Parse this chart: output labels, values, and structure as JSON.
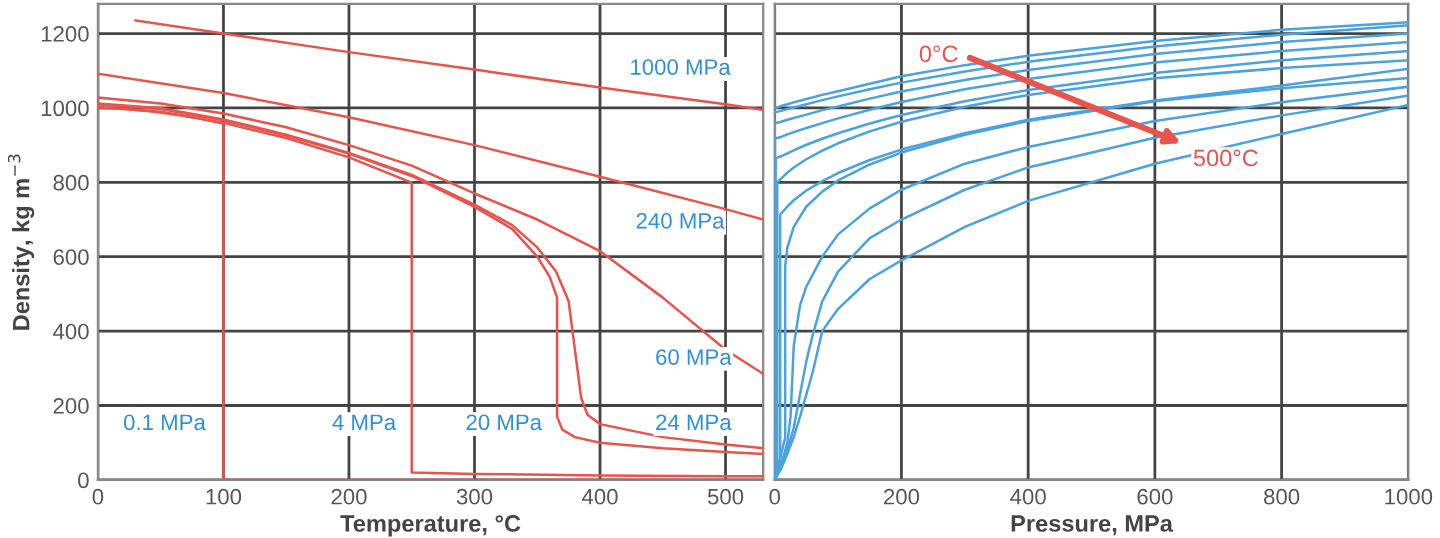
{
  "chart_data": [
    {
      "type": "line",
      "xlabel": "Temperature, °C",
      "ylabel": "Density, kg m$^{−3}$",
      "xlim": [
        0,
        530
      ],
      "ylim": [
        0,
        1280
      ],
      "xticks": [
        0,
        100,
        200,
        300,
        400,
        500
      ],
      "yticks": [
        0,
        200,
        400,
        600,
        800,
        1000,
        1200
      ],
      "grid": true,
      "series": [
        {
          "name": "0.1 MPa",
          "color": "#e8534b",
          "x": [
            0,
            20,
            40,
            60,
            80,
            100,
            100,
            200,
            300,
            400,
            530
          ],
          "values": [
            1000,
            998,
            992,
            983,
            972,
            958,
            0,
            0,
            0,
            0,
            0
          ]
        },
        {
          "name": "4 MPa",
          "color": "#e8534b",
          "x": [
            0,
            50,
            100,
            150,
            200,
            250,
            250,
            300,
            400,
            500,
            530
          ],
          "values": [
            1002,
            990,
            960,
            919,
            867,
            799,
            20,
            16,
            12,
            10,
            10
          ]
        },
        {
          "name": "20 MPa",
          "color": "#e8534b",
          "x": [
            0,
            50,
            100,
            150,
            200,
            250,
            300,
            330,
            350,
            360,
            365.8,
            365.8,
            370,
            380,
            400,
            450,
            500,
            530
          ],
          "values": [
            1010,
            997,
            967,
            926,
            877,
            817,
            734,
            675,
            600,
            545,
            490,
            170,
            135,
            115,
            100,
            85,
            75,
            70
          ]
        },
        {
          "name": "24 MPa",
          "color": "#e8534b",
          "x": [
            0,
            50,
            100,
            150,
            200,
            250,
            300,
            330,
            350,
            365,
            375,
            380,
            385,
            390,
            400,
            450,
            500,
            530
          ],
          "values": [
            1012,
            999,
            969,
            928,
            879,
            820,
            740,
            685,
            625,
            560,
            480,
            350,
            220,
            175,
            150,
            115,
            95,
            85
          ]
        },
        {
          "name": "60 MPa",
          "color": "#e8534b",
          "x": [
            0,
            50,
            100,
            150,
            200,
            250,
            300,
            350,
            400,
            450,
            500,
            530
          ],
          "values": [
            1028,
            1012,
            985,
            948,
            900,
            845,
            770,
            700,
            615,
            490,
            350,
            285
          ]
        },
        {
          "name": "240 MPa",
          "color": "#e8534b",
          "x": [
            0,
            100,
            200,
            300,
            400,
            500,
            530
          ],
          "values": [
            1092,
            1040,
            975,
            900,
            815,
            728,
            700
          ]
        },
        {
          "name": "1000 MPa",
          "color": "#e8534b",
          "x": [
            30,
            100,
            200,
            300,
            400,
            500,
            530
          ],
          "values": [
            1235,
            1200,
            1150,
            1103,
            1055,
            1010,
            995
          ]
        }
      ]
    },
    {
      "type": "line",
      "xlabel": "Pressure, MPa",
      "xlim": [
        0,
        1000
      ],
      "ylim": [
        0,
        1280
      ],
      "xticks": [
        0,
        200,
        400,
        600,
        800,
        1000
      ],
      "yticks": [
        0,
        200,
        400,
        600,
        800,
        1000,
        1200
      ],
      "grid": true,
      "tick_labels": "x",
      "annotations": [
        {
          "text": "0°C",
          "x": 300,
          "y": 1140
        },
        {
          "text": "500°C",
          "x": 650,
          "y": 900
        }
      ],
      "series": [
        {
          "color": "#4aa3df",
          "x": [
            0,
            5,
            10,
            20,
            30,
            50,
            75,
            100,
            150,
            200,
            300,
            400,
            600,
            800,
            1000
          ],
          "values": [
            1000,
            1002,
            1005,
            1010,
            1015,
            1024,
            1035,
            1045,
            1065,
            1085,
            1115,
            1140,
            1180,
            1210,
            1230
          ]
        },
        {
          "color": "#4aa3df",
          "x": [
            0,
            5,
            10,
            20,
            30,
            50,
            75,
            100,
            150,
            200,
            300,
            400,
            600,
            800,
            1000
          ],
          "values": [
            988,
            990,
            992,
            997,
            1001,
            1010,
            1021,
            1031,
            1050,
            1068,
            1098,
            1124,
            1165,
            1197,
            1222
          ]
        },
        {
          "color": "#4aa3df",
          "x": [
            0,
            0.1,
            5,
            10,
            20,
            30,
            50,
            75,
            100,
            150,
            200,
            300,
            400,
            600,
            800,
            1000
          ],
          "values": [
            0,
            958,
            961,
            963,
            968,
            973,
            982,
            994,
            1004,
            1025,
            1044,
            1075,
            1102,
            1145,
            1177,
            1200
          ]
        },
        {
          "color": "#4aa3df",
          "x": [
            0,
            0.5,
            5,
            10,
            20,
            30,
            50,
            75,
            100,
            150,
            200,
            300,
            400,
            600,
            800,
            1000
          ],
          "values": [
            0,
            917,
            920,
            922,
            929,
            935,
            946,
            959,
            972,
            995,
            1016,
            1050,
            1078,
            1122,
            1153,
            1177
          ]
        },
        {
          "color": "#4aa3df",
          "x": [
            0,
            1.6,
            5,
            10,
            20,
            30,
            50,
            75,
            100,
            150,
            200,
            300,
            400,
            600,
            800,
            1000
          ],
          "values": [
            0,
            865,
            867,
            870,
            878,
            886,
            901,
            917,
            932,
            958,
            981,
            1018,
            1048,
            1094,
            1128,
            1153
          ]
        },
        {
          "color": "#4aa3df",
          "x": [
            0,
            4,
            4,
            5,
            10,
            20,
            30,
            50,
            75,
            100,
            150,
            200,
            300,
            400,
            600,
            800,
            1000
          ],
          "values": [
            0,
            20,
            800,
            802,
            810,
            826,
            840,
            862,
            885,
            905,
            937,
            963,
            1003,
            1035,
            1080,
            1107,
            1128
          ]
        },
        {
          "color": "#4aa3df",
          "x": [
            0,
            8.6,
            8.6,
            10,
            20,
            30,
            50,
            75,
            100,
            150,
            200,
            300,
            400,
            600,
            800,
            1000
          ],
          "values": [
            0,
            46,
            712,
            716,
            735,
            752,
            778,
            803,
            825,
            860,
            888,
            932,
            968,
            1020,
            1060,
            1105
          ]
        },
        {
          "color": "#4aa3df",
          "x": [
            0,
            16.5,
            16.5,
            20,
            30,
            50,
            75,
            100,
            150,
            200,
            300,
            400,
            600,
            800,
            1000
          ],
          "values": [
            0,
            113,
            575,
            625,
            680,
            735,
            775,
            805,
            848,
            880,
            928,
            965,
            1018,
            1053,
            1080
          ]
        },
        {
          "color": "#4aa3df",
          "x": [
            0,
            10,
            20,
            25,
            30,
            40,
            50,
            75,
            100,
            150,
            200,
            300,
            400,
            600,
            800,
            1000
          ],
          "values": [
            0,
            40,
            100,
            170,
            360,
            470,
            520,
            600,
            660,
            730,
            780,
            850,
            895,
            965,
            1015,
            1057
          ]
        },
        {
          "color": "#4aa3df",
          "x": [
            0,
            10,
            20,
            30,
            40,
            50,
            60,
            75,
            100,
            150,
            200,
            300,
            400,
            600,
            800,
            1000
          ],
          "values": [
            0,
            35,
            80,
            140,
            230,
            320,
            390,
            480,
            560,
            650,
            700,
            780,
            840,
            920,
            980,
            1033
          ]
        },
        {
          "color": "#4aa3df",
          "x": [
            0,
            10,
            20,
            30,
            40,
            50,
            60,
            75,
            100,
            150,
            200,
            300,
            400,
            600,
            800,
            1000
          ],
          "values": [
            0,
            30,
            70,
            115,
            170,
            230,
            290,
            400,
            460,
            540,
            590,
            680,
            750,
            850,
            930,
            1008
          ]
        }
      ]
    }
  ]
}
